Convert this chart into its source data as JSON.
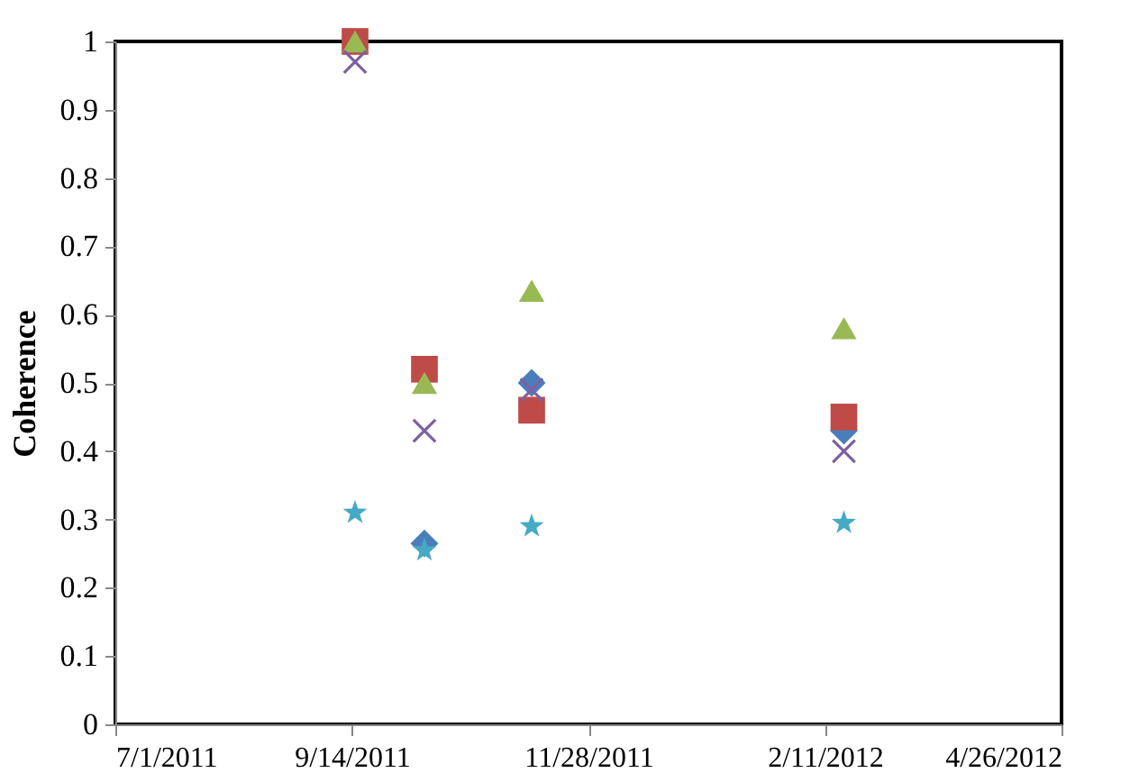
{
  "chart_data": {
    "type": "scatter",
    "ylabel": "Coherence",
    "x": [
      "2011-09-15",
      "2011-10-07",
      "2011-11-10",
      "2012-02-17"
    ],
    "series": [
      {
        "color": "#4a7ebb",
        "marker": "diamond",
        "values": [
          null,
          0.265,
          0.5,
          0.43
        ]
      },
      {
        "color": "#be4b48",
        "marker": "square",
        "values": [
          1.0,
          0.52,
          0.46,
          0.45
        ]
      },
      {
        "color": "#98b954",
        "marker": "triangle",
        "values": [
          1.0,
          0.5,
          0.635,
          0.58
        ]
      },
      {
        "color": "#7d60a0",
        "marker": "cross",
        "values": [
          0.97,
          0.43,
          0.49,
          0.4
        ]
      },
      {
        "color": "#46aac5",
        "marker": "star",
        "values": [
          0.31,
          0.255,
          0.29,
          0.295
        ]
      }
    ],
    "xlim": [
      "2011-07-01",
      "2012-04-26"
    ],
    "xticks": [
      {
        "value": "2011-07-01",
        "label": "7/1/2011"
      },
      {
        "value": "2011-09-14",
        "label": "9/14/2011"
      },
      {
        "value": "2011-11-28",
        "label": "11/28/2011"
      },
      {
        "value": "2012-02-11",
        "label": "2/11/2012"
      },
      {
        "value": "2012-04-26",
        "label": "4/26/2012"
      }
    ],
    "ylim": [
      0,
      1
    ],
    "yticks": [
      0,
      0.1,
      0.2,
      0.3,
      0.4,
      0.5,
      0.6,
      0.7,
      0.8,
      0.9,
      1
    ],
    "grid": false,
    "legend": false
  }
}
